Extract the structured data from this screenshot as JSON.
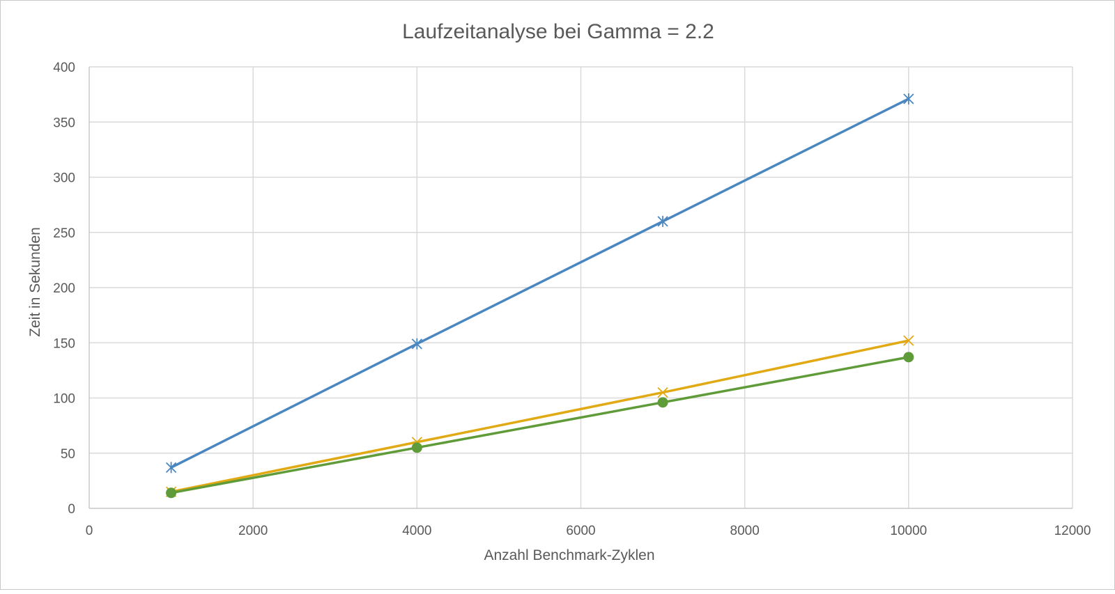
{
  "chart_data": {
    "type": "scatter",
    "title": "Laufzeitanalyse bei Gamma = 2.2",
    "xlabel": "Anzahl Benchmark-Zyklen",
    "ylabel": "Zeit in Sekunden",
    "xlim": [
      0,
      12000
    ],
    "ylim": [
      0,
      400
    ],
    "xticks": [
      0,
      2000,
      4000,
      6000,
      8000,
      10000,
      12000
    ],
    "yticks": [
      0,
      50,
      100,
      150,
      200,
      250,
      300,
      350,
      400
    ],
    "grid": true,
    "legend": "none",
    "series": [
      {
        "color": "#4a86c0",
        "marker": "star-x",
        "x": [
          1000,
          4000,
          7000,
          10000
        ],
        "y": [
          37,
          149,
          260,
          371
        ]
      },
      {
        "color": "#e1aa14",
        "marker": "x",
        "x": [
          1000,
          4000,
          7000,
          10000
        ],
        "y": [
          15,
          60,
          105,
          152
        ]
      },
      {
        "color": "#5f9c39",
        "marker": "circle",
        "x": [
          1000,
          4000,
          7000,
          10000
        ],
        "y": [
          14,
          55,
          96,
          137
        ]
      }
    ]
  }
}
